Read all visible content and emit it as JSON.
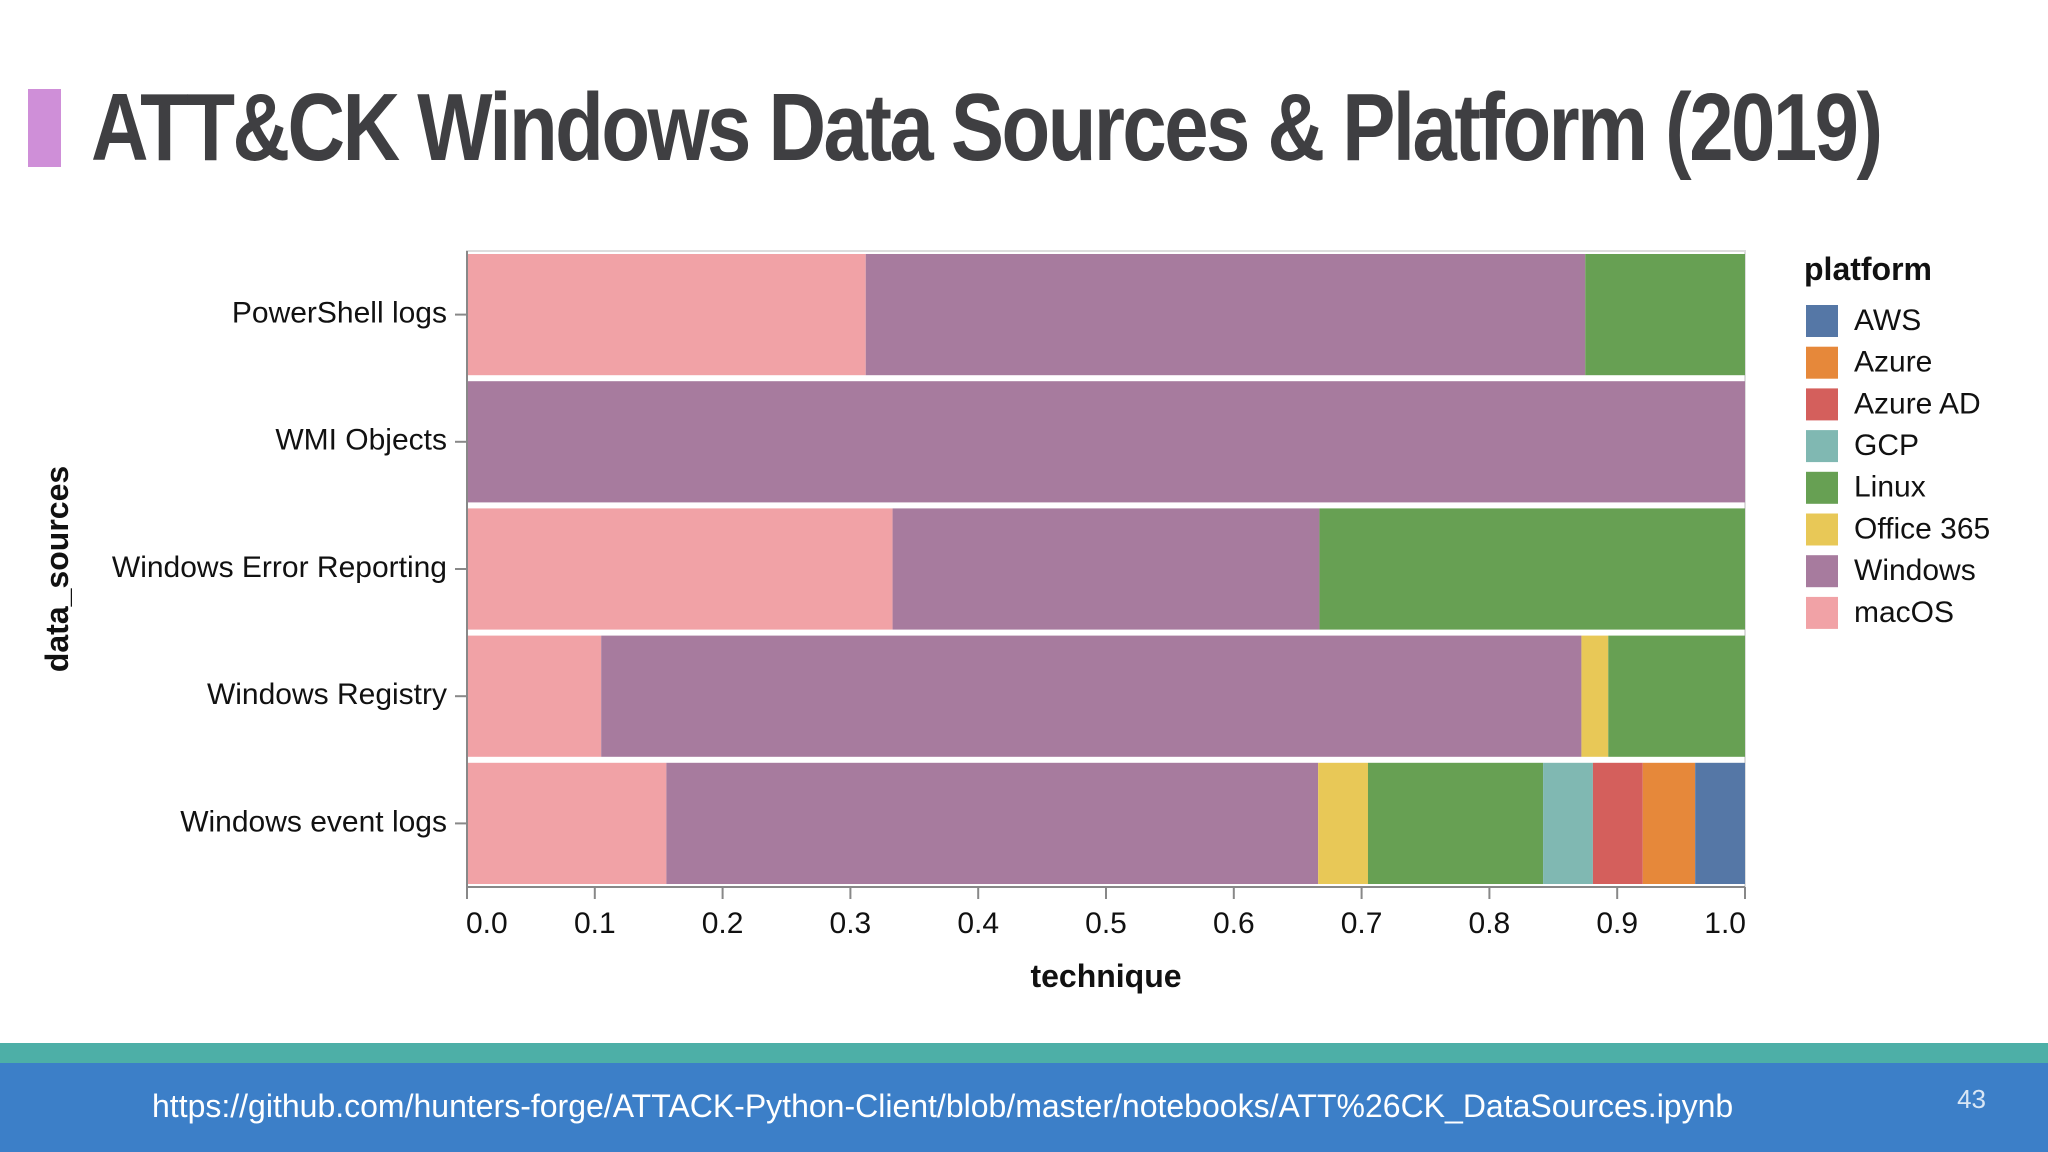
{
  "slide": {
    "title": "ATT&CK Windows Data Sources & Platform (2019)",
    "footer_link": "https://github.com/hunters-forge/ATTACK-Python-Client/blob/master/notebooks/ATT%26CK_DataSources.ipynb",
    "page_number": "43",
    "colors": {
      "title_accent": "#cf8fd8",
      "footer_teal": "#4dafa7",
      "footer_blue": "#3c7fc8"
    }
  },
  "chart_data": {
    "type": "bar",
    "orientation": "horizontal",
    "stacked": true,
    "normalized": true,
    "xlabel": "technique",
    "ylabel": "data_sources",
    "xlim": [
      0,
      1
    ],
    "xticks": [
      "0.0",
      "0.1",
      "0.2",
      "0.3",
      "0.4",
      "0.5",
      "0.6",
      "0.7",
      "0.8",
      "0.9",
      "1.0"
    ],
    "categories": [
      "PowerShell logs",
      "WMI Objects",
      "Windows Error Reporting",
      "Windows Registry",
      "Windows event logs"
    ],
    "legend": {
      "title": "platform",
      "position": "right"
    },
    "stack_order": [
      "macOS",
      "Windows",
      "Office 365",
      "Linux",
      "GCP",
      "Azure AD",
      "Azure",
      "AWS"
    ],
    "series": [
      {
        "name": "AWS",
        "color": "#5577a6",
        "values": [
          0,
          0,
          0,
          0,
          0.039
        ]
      },
      {
        "name": "Azure",
        "color": "#e6883a",
        "values": [
          0,
          0,
          0,
          0,
          0.041
        ]
      },
      {
        "name": "Azure AD",
        "color": "#d45f5c",
        "values": [
          0,
          0,
          0,
          0,
          0.039
        ]
      },
      {
        "name": "GCP",
        "color": "#80b8b2",
        "values": [
          0,
          0,
          0,
          0,
          0.039
        ]
      },
      {
        "name": "Linux",
        "color": "#67a053",
        "values": [
          0.125,
          0,
          0.333,
          0.107,
          0.137
        ]
      },
      {
        "name": "Office 365",
        "color": "#e8c857",
        "values": [
          0,
          0,
          0,
          0.021,
          0.039
        ]
      },
      {
        "name": "Windows",
        "color": "#a77b9e",
        "values": [
          0.563,
          1.0,
          0.334,
          0.767,
          0.51
        ]
      },
      {
        "name": "macOS",
        "color": "#f1a2a6",
        "values": [
          0.312,
          0,
          0.333,
          0.105,
          0.156
        ]
      }
    ]
  }
}
